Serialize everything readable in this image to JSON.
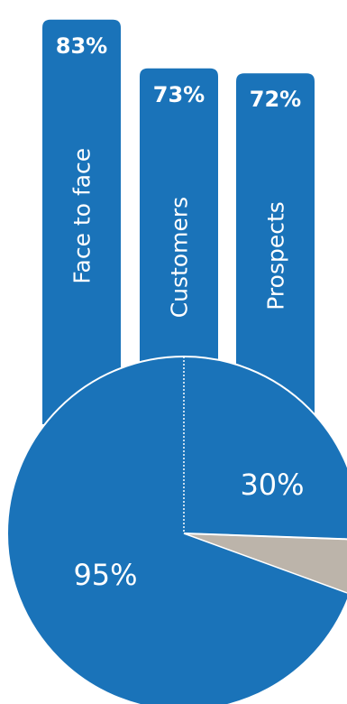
{
  "chart_data": [
    {
      "type": "bar",
      "categories": [
        "Face to face",
        "Customers",
        "Prospects"
      ],
      "values": [
        83,
        73,
        72
      ],
      "value_labels": [
        "83%",
        "73%",
        "72%"
      ],
      "colors": {
        "bar": "#1a73b9",
        "text": "#ffffff"
      }
    },
    {
      "type": "pie",
      "values": [
        30,
        5,
        95
      ],
      "labels": [
        "30%",
        "",
        "95%"
      ],
      "colors": {
        "slice_main": "#1a73b9",
        "slice_minor": "#bcb4aa",
        "divider": "#ffffff"
      }
    }
  ]
}
